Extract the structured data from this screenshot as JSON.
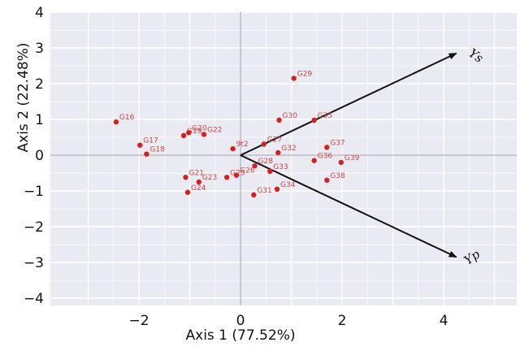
{
  "chart_data": {
    "type": "scatter",
    "title": "",
    "xlabel": "Axis 1 (77.52%)",
    "ylabel": "Axis 2 (22.48%)",
    "xlim": [
      -3.9,
      5.6
    ],
    "ylim": [
      -4,
      4
    ],
    "xticks": [
      -2,
      0,
      2,
      4
    ],
    "xtick_labels": [
      "−2",
      "0",
      "2",
      "4"
    ],
    "yticks": [
      -4,
      -3,
      -2,
      -1,
      0,
      1,
      2,
      3,
      4
    ],
    "ytick_labels": [
      "−4",
      "−3",
      "−2",
      "−1",
      "0",
      "1",
      "2",
      "3",
      "4"
    ],
    "grid": true,
    "background_color": "#eaeaf2",
    "point_color": "#d62020",
    "label_color": "#cc4444",
    "points": [
      {
        "label": "G16",
        "x": -2.45,
        "y": 0.93
      },
      {
        "label": "G17",
        "x": -1.98,
        "y": 0.28
      },
      {
        "label": "G18",
        "x": -1.85,
        "y": 0.03
      },
      {
        "label": "G19",
        "x": -1.12,
        "y": 0.55
      },
      {
        "label": "G20",
        "x": -1.02,
        "y": 0.63
      },
      {
        "label": "G21",
        "x": -1.08,
        "y": -0.62
      },
      {
        "label": "G22",
        "x": -0.72,
        "y": 0.58
      },
      {
        "label": "G23",
        "x": -0.82,
        "y": -0.75
      },
      {
        "label": "G24",
        "x": -1.04,
        "y": -1.04
      },
      {
        "label": "G25",
        "x": -0.27,
        "y": -0.62
      },
      {
        "label": "G26",
        "x": -0.08,
        "y": -0.56
      },
      {
        "label": "G27",
        "x": 0.46,
        "y": 0.31
      },
      {
        "label": "G28",
        "x": 0.28,
        "y": -0.3
      },
      {
        "label": "G29",
        "x": 1.05,
        "y": 2.15
      },
      {
        "label": "G30",
        "x": 0.76,
        "y": 0.98
      },
      {
        "label": "G31",
        "x": 0.26,
        "y": -1.11
      },
      {
        "label": "G32",
        "x": 0.74,
        "y": 0.07
      },
      {
        "label": "G33",
        "x": 0.58,
        "y": -0.45
      },
      {
        "label": "G34",
        "x": 0.72,
        "y": -0.95
      },
      {
        "label": "G35",
        "x": 1.45,
        "y": 0.98
      },
      {
        "label": "G36",
        "x": 1.45,
        "y": -0.15
      },
      {
        "label": "G37",
        "x": 1.7,
        "y": 0.22
      },
      {
        "label": "G38",
        "x": 1.7,
        "y": -0.7
      },
      {
        "label": "G39",
        "x": 1.98,
        "y": -0.2
      },
      {
        "label": "9t2",
        "x": -0.15,
        "y": 0.18
      }
    ],
    "vectors": [
      {
        "label": "Ys",
        "x": 4.25,
        "y": 2.85
      },
      {
        "label": "Yp",
        "x": 4.25,
        "y": -2.85
      }
    ]
  }
}
